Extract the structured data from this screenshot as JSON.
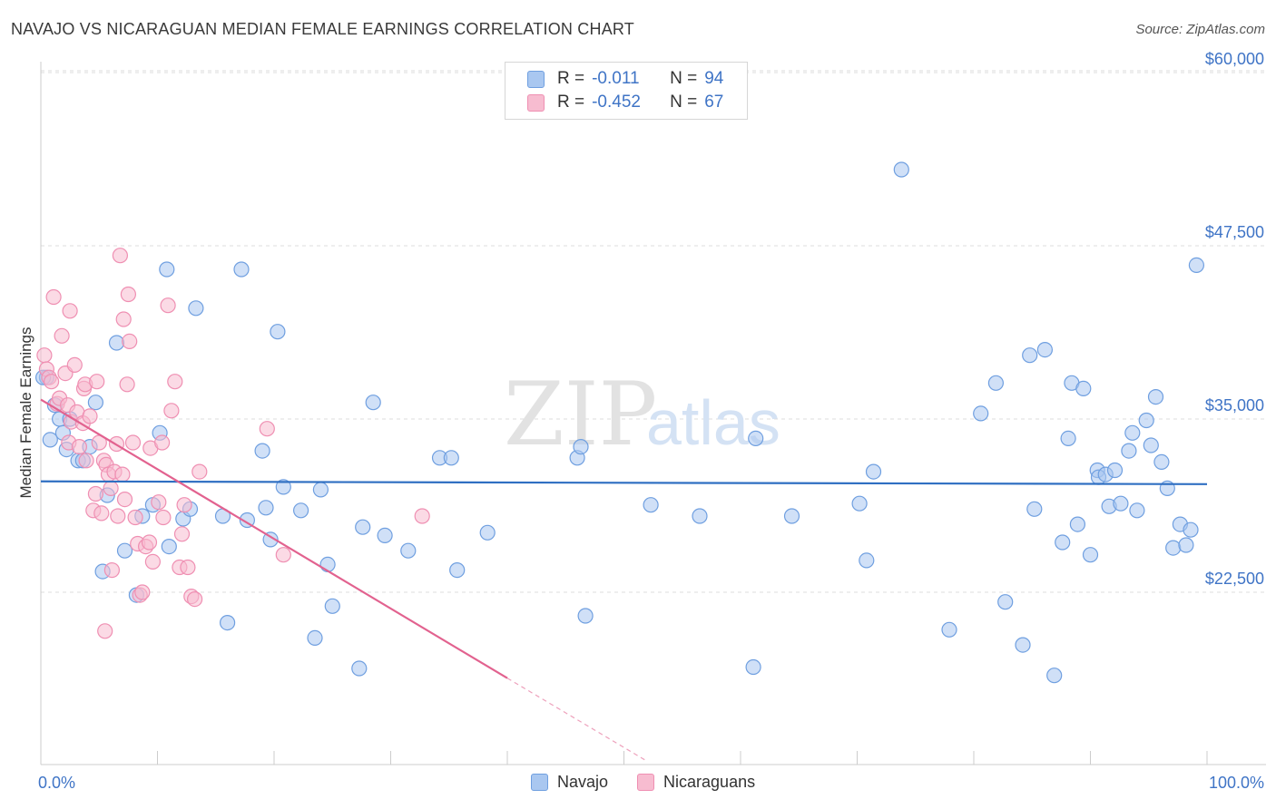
{
  "title": "NAVAJO VS NICARAGUAN MEDIAN FEMALE EARNINGS CORRELATION CHART",
  "source": "Source: ZipAtlas.com",
  "watermark": {
    "part1": "ZIP",
    "part2": "atlas"
  },
  "legend_stats": [
    {
      "swatch_color": "#a9c7f0",
      "r_label": "R =",
      "r_value": "-0.011",
      "n_label": "N =",
      "n_value": "94"
    },
    {
      "swatch_color": "#f7bcd0",
      "r_label": "R =",
      "r_value": "-0.452",
      "n_label": "N =",
      "n_value": "67"
    }
  ],
  "bottom_legend": [
    "Navajo",
    "Nicaraguans"
  ],
  "chart_data": {
    "type": "scatter",
    "title": "NAVAJO VS NICARAGUAN MEDIAN FEMALE EARNINGS CORRELATION CHART",
    "xlabel": "",
    "ylabel": "Median Female Earnings",
    "xlim": [
      0,
      100
    ],
    "ylim": [
      9000,
      60000
    ],
    "x_tick_labels": [
      "0.0%",
      "100.0%"
    ],
    "y_ticks": [
      22500,
      35000,
      47500,
      60000
    ],
    "y_tick_labels": [
      "$22,500",
      "$35,000",
      "$47,500",
      "$60,000"
    ],
    "grid": true,
    "legend_position": "top-center",
    "series": [
      {
        "name": "Navajo",
        "color": "#a9c7f0",
        "stroke": "#6f9fe0",
        "trend_color": "#2f6fc2",
        "trend": {
          "x": [
            0,
            100
          ],
          "y": [
            30500,
            30300
          ]
        },
        "points": [
          [
            0.5,
            38
          ],
          [
            0.8,
            33.5
          ],
          [
            1.2,
            36
          ],
          [
            1.6,
            35
          ],
          [
            1.9,
            34
          ],
          [
            2.2,
            32.8
          ],
          [
            2.5,
            35
          ],
          [
            3.2,
            32
          ],
          [
            3.6,
            32
          ],
          [
            4.2,
            33
          ],
          [
            4.7,
            36.2
          ],
          [
            5.3,
            24
          ],
          [
            5.7,
            29.5
          ],
          [
            6.5,
            40.5
          ],
          [
            7.2,
            25.5
          ],
          [
            8.2,
            22.3
          ],
          [
            8.7,
            28
          ],
          [
            9.6,
            28.8
          ],
          [
            10.2,
            34
          ],
          [
            10.8,
            45.8
          ],
          [
            11,
            25.8
          ],
          [
            12.2,
            27.8
          ],
          [
            12.8,
            28.5
          ],
          [
            13.3,
            43
          ],
          [
            15.6,
            28
          ],
          [
            16,
            20.3
          ],
          [
            17.2,
            45.8
          ],
          [
            17.7,
            27.7
          ],
          [
            19,
            32.7
          ],
          [
            19.3,
            28.6
          ],
          [
            19.7,
            26.3
          ],
          [
            20.3,
            41.3
          ],
          [
            20.8,
            30.1
          ],
          [
            22.3,
            28.4
          ],
          [
            23.5,
            19.2
          ],
          [
            24,
            29.9
          ],
          [
            24.6,
            24.5
          ],
          [
            25,
            21.5
          ],
          [
            27.3,
            17
          ],
          [
            27.6,
            27.2
          ],
          [
            28.5,
            36.2
          ],
          [
            29.5,
            26.6
          ],
          [
            31.5,
            25.5
          ],
          [
            34.2,
            32.2
          ],
          [
            35.2,
            32.2
          ],
          [
            35.7,
            24.1
          ],
          [
            38.3,
            26.8
          ],
          [
            46,
            32.2
          ],
          [
            46.3,
            33
          ],
          [
            46.7,
            20.8
          ],
          [
            52.3,
            28.8
          ],
          [
            56.5,
            28
          ],
          [
            61.1,
            17.1
          ],
          [
            61.3,
            33.6
          ],
          [
            64.4,
            28
          ],
          [
            70.2,
            28.9
          ],
          [
            70.8,
            24.8
          ],
          [
            71.4,
            31.2
          ],
          [
            73.8,
            53
          ],
          [
            77.9,
            19.8
          ],
          [
            80.6,
            35.4
          ],
          [
            81.9,
            37.6
          ],
          [
            82.7,
            21.8
          ],
          [
            84.2,
            18.7
          ],
          [
            84.8,
            39.6
          ],
          [
            85.2,
            28.5
          ],
          [
            86.1,
            40
          ],
          [
            86.9,
            16.5
          ],
          [
            87.6,
            26.1
          ],
          [
            88.1,
            33.6
          ],
          [
            88.4,
            37.6
          ],
          [
            88.9,
            27.4
          ],
          [
            89.4,
            37.2
          ],
          [
            90,
            25.2
          ],
          [
            90.6,
            31.3
          ],
          [
            90.7,
            30.8
          ],
          [
            91.3,
            31
          ],
          [
            91.6,
            28.7
          ],
          [
            92.1,
            31.3
          ],
          [
            92.6,
            28.9
          ],
          [
            93.3,
            32.7
          ],
          [
            93.6,
            34
          ],
          [
            94,
            28.4
          ],
          [
            94.8,
            34.9
          ],
          [
            95.2,
            33.1
          ],
          [
            95.6,
            36.6
          ],
          [
            96.1,
            31.9
          ],
          [
            96.6,
            30
          ],
          [
            97.1,
            25.7
          ],
          [
            97.7,
            27.4
          ],
          [
            98.2,
            25.9
          ],
          [
            98.6,
            27
          ],
          [
            99.1,
            46.1
          ],
          [
            0.2,
            38
          ]
        ]
      },
      {
        "name": "Nicaraguans",
        "color": "#f7bcd0",
        "stroke": "#ef8fb2",
        "trend_color": "#e2628f",
        "trend": {
          "x": [
            0,
            40
          ],
          "y": [
            36400,
            16300
          ]
        },
        "trend_extension": {
          "x": [
            40,
            52
          ],
          "y": [
            16300,
            10300
          ]
        },
        "points": [
          [
            0.3,
            39.6
          ],
          [
            0.5,
            38.6
          ],
          [
            0.7,
            38
          ],
          [
            0.9,
            37.7
          ],
          [
            1.1,
            43.8
          ],
          [
            1.4,
            36.1
          ],
          [
            1.6,
            36.5
          ],
          [
            1.8,
            41
          ],
          [
            2.1,
            38.3
          ],
          [
            2.3,
            36
          ],
          [
            2.4,
            33.3
          ],
          [
            2.5,
            42.8
          ],
          [
            2.6,
            34.8
          ],
          [
            2.9,
            38.9
          ],
          [
            3.1,
            35.5
          ],
          [
            3.3,
            33
          ],
          [
            3.6,
            34.7
          ],
          [
            3.7,
            37.2
          ],
          [
            3.8,
            37.5
          ],
          [
            3.9,
            32
          ],
          [
            4.2,
            35.2
          ],
          [
            4.5,
            28.4
          ],
          [
            4.7,
            29.6
          ],
          [
            4.8,
            37.7
          ],
          [
            5,
            33.3
          ],
          [
            5.2,
            28.2
          ],
          [
            5.4,
            32
          ],
          [
            5.6,
            31.7
          ],
          [
            5.8,
            31
          ],
          [
            6.1,
            24.1
          ],
          [
            6.3,
            31.2
          ],
          [
            6.5,
            33.2
          ],
          [
            6.6,
            28
          ],
          [
            6.8,
            46.8
          ],
          [
            7,
            31
          ],
          [
            7.2,
            29.2
          ],
          [
            7.4,
            37.5
          ],
          [
            7.5,
            44
          ],
          [
            7.6,
            40.6
          ],
          [
            7.9,
            33.3
          ],
          [
            8.1,
            27.9
          ],
          [
            8.3,
            26
          ],
          [
            8.5,
            22.3
          ],
          [
            8.7,
            22.5
          ],
          [
            9,
            25.8
          ],
          [
            9.3,
            26.1
          ],
          [
            9.6,
            24.7
          ],
          [
            10.1,
            29
          ],
          [
            10.5,
            27.9
          ],
          [
            10.9,
            43.2
          ],
          [
            11.2,
            35.6
          ],
          [
            11.5,
            37.7
          ],
          [
            11.9,
            24.3
          ],
          [
            12.1,
            26.7
          ],
          [
            12.3,
            28.8
          ],
          [
            12.6,
            24.3
          ],
          [
            12.9,
            22.2
          ],
          [
            13.2,
            22
          ],
          [
            13.6,
            31.2
          ],
          [
            7.1,
            42.2
          ],
          [
            9.4,
            32.9
          ],
          [
            10.4,
            33.3
          ],
          [
            5.5,
            19.7
          ],
          [
            6,
            30
          ],
          [
            19.4,
            34.3
          ],
          [
            20.8,
            25.2
          ],
          [
            32.7,
            28
          ]
        ]
      }
    ]
  }
}
